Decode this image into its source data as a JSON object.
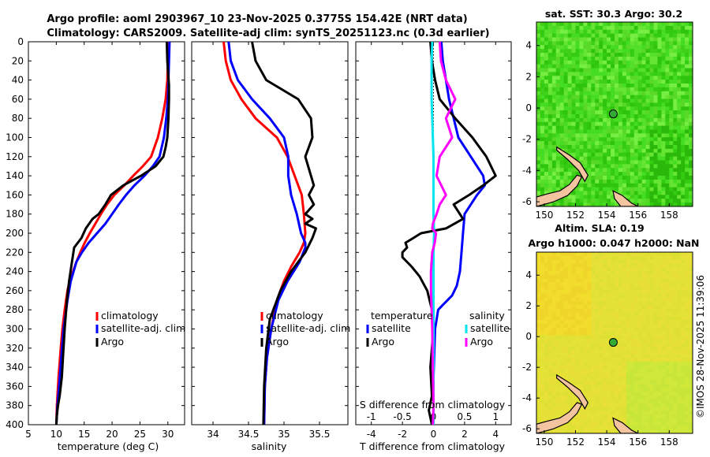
{
  "figure": {
    "title_line1": "Argo profile: aoml 2903967_10 23-Nov-2025 0.3775S 154.42E (NRT data)",
    "title_line2": "Climatology: CARS2009. Satellite-adj clim: synTS_20251123.nc (0.3d earlier)",
    "credit": "©IMOS 28-Nov-2025 11:39:06"
  },
  "colors": {
    "climatology": "#ff0000",
    "satellite": "#0000ff",
    "argo": "#000000",
    "temp_diff_satellite": "#0000ff",
    "sal_diff_satellite": "#00e5ee",
    "sal_diff_argo": "#ff00ff",
    "land": "#f4c4a0"
  },
  "chart_data": [
    {
      "type": "line",
      "name": "temperature-profile",
      "xlabel": "temperature (deg C)",
      "ylabel": "",
      "xlim": [
        5,
        33
      ],
      "ylim": [
        0,
        400
      ],
      "y_inverted": true,
      "xticks": [
        5,
        10,
        15,
        20,
        25,
        30
      ],
      "yticks": [
        0,
        20,
        40,
        60,
        80,
        100,
        120,
        140,
        160,
        180,
        200,
        220,
        240,
        260,
        280,
        300,
        320,
        340,
        360,
        380,
        400
      ],
      "legend": [
        "climatology",
        "satellite-adj. clim",
        "Argo"
      ],
      "series": [
        {
          "name": "climatology",
          "color": "#ff0000",
          "x": [
            30.1,
            30.0,
            29.9,
            29.6,
            29.0,
            28.2,
            27.0,
            25.5,
            23.8,
            22.2,
            20.4,
            19.1,
            18.0,
            17.0,
            16.0,
            15.1,
            14.3,
            13.6,
            13.0,
            12.4,
            12.0,
            11.5,
            11.1,
            10.8,
            10.4,
            10.1,
            10.0
          ],
          "y": [
            0,
            20,
            40,
            60,
            80,
            100,
            120,
            130,
            140,
            150,
            160,
            170,
            180,
            190,
            200,
            210,
            220,
            230,
            240,
            250,
            260,
            280,
            300,
            320,
            350,
            380,
            400
          ]
        },
        {
          "name": "satellite-adj. clim",
          "color": "#0000ff",
          "x": [
            30.3,
            30.2,
            30.1,
            30.0,
            29.7,
            29.3,
            28.5,
            27.3,
            25.8,
            24.0,
            22.5,
            21.2,
            20.0,
            18.8,
            17.3,
            15.8,
            14.6,
            13.6,
            12.6,
            12.0,
            11.3,
            10.9,
            10.5,
            10.2,
            10.0
          ],
          "y": [
            0,
            20,
            40,
            60,
            80,
            100,
            120,
            130,
            140,
            150,
            160,
            170,
            180,
            190,
            200,
            210,
            220,
            230,
            250,
            270,
            300,
            330,
            360,
            380,
            400
          ]
        },
        {
          "name": "Argo",
          "color": "#000000",
          "x": [
            29.8,
            29.9,
            30.2,
            30.2,
            30.1,
            29.9,
            29.6,
            29.2,
            27.8,
            25.2,
            22.0,
            19.8,
            18.8,
            17.6,
            16.5,
            15.3,
            14.5,
            13.2,
            12.8,
            12.3,
            11.9,
            11.5,
            11.2,
            11.0,
            10.6,
            10.3,
            10.1,
            10.0
          ],
          "y": [
            0,
            20,
            45,
            60,
            80,
            100,
            110,
            120,
            130,
            140,
            150,
            160,
            170,
            180,
            185,
            195,
            205,
            215,
            230,
            250,
            270,
            300,
            330,
            350,
            370,
            380,
            390,
            400
          ]
        }
      ]
    },
    {
      "type": "line",
      "name": "salinity-profile",
      "xlabel": "salinity",
      "ylabel": "",
      "xlim": [
        33.7,
        35.9
      ],
      "ylim": [
        0,
        400
      ],
      "y_inverted": true,
      "xticks": [
        34,
        34.5,
        35,
        35.5
      ],
      "legend": [
        "climatology",
        "satellite-adj. clim",
        "Argo"
      ],
      "series": [
        {
          "name": "climatology",
          "color": "#ff0000",
          "x": [
            34.15,
            34.18,
            34.25,
            34.4,
            34.6,
            34.9,
            35.05,
            35.15,
            35.25,
            35.28,
            35.3,
            35.28,
            35.22,
            35.1,
            35.0,
            34.9,
            34.82,
            34.76,
            34.73,
            34.72
          ],
          "y": [
            0,
            20,
            40,
            60,
            80,
            100,
            120,
            140,
            160,
            180,
            200,
            210,
            220,
            235,
            250,
            270,
            300,
            330,
            360,
            400
          ]
        },
        {
          "name": "satellite-adj. clim",
          "color": "#0000ff",
          "x": [
            34.22,
            34.25,
            34.35,
            34.55,
            34.8,
            35.0,
            35.06,
            35.06,
            35.1,
            35.18,
            35.24,
            35.3,
            35.3,
            35.22,
            35.05,
            34.92,
            34.82,
            34.76,
            34.73,
            34.72
          ],
          "y": [
            0,
            20,
            40,
            60,
            80,
            100,
            120,
            140,
            160,
            180,
            200,
            210,
            215,
            230,
            250,
            270,
            300,
            330,
            360,
            400
          ]
        },
        {
          "name": "Argo",
          "color": "#000000",
          "x": [
            34.55,
            34.6,
            34.75,
            35.2,
            35.38,
            35.4,
            35.3,
            35.38,
            35.42,
            35.35,
            35.42,
            35.3,
            35.4,
            35.3,
            35.45,
            35.4,
            35.3,
            35.1,
            34.95,
            34.8,
            34.75,
            34.72,
            34.71
          ],
          "y": [
            0,
            20,
            40,
            60,
            80,
            100,
            120,
            140,
            150,
            160,
            170,
            180,
            185,
            190,
            195,
            205,
            220,
            240,
            260,
            290,
            320,
            360,
            400
          ]
        }
      ]
    },
    {
      "type": "line",
      "name": "difference-from-climatology",
      "xlabel": "T difference from climatology",
      "xlabel_top": "S difference from climatology",
      "xlim": [
        -5,
        5
      ],
      "xlim_salinity": [
        -1.25,
        1.25
      ],
      "ylim": [
        0,
        400
      ],
      "y_inverted": true,
      "xticks": [
        -4,
        -2,
        0,
        2,
        4
      ],
      "xticks_salinity": [
        -1,
        -0.5,
        0,
        0.5,
        1
      ],
      "xticklabels_salinity": [
        "-1",
        "-0.5",
        "0",
        "0.5",
        "1"
      ],
      "legend_temperature_title": "temperature",
      "legend_salinity_title": "salinity",
      "legend_temperature": [
        "satellite",
        "Argo"
      ],
      "legend_salinity": [
        "satellite",
        "Argo"
      ],
      "series": [
        {
          "name": "temperature satellite",
          "color": "#0000ff",
          "x": [
            0.5,
            0.6,
            0.8,
            1.0,
            1.3,
            1.6,
            2.4,
            3.2,
            3.3,
            2.8,
            2.0,
            1.9,
            1.8,
            1.7,
            1.5,
            1.2,
            0.9,
            0.6,
            0.3,
            0.1,
            0.0,
            0.0
          ],
          "y": [
            0,
            20,
            40,
            60,
            80,
            100,
            120,
            140,
            150,
            160,
            180,
            200,
            220,
            240,
            255,
            265,
            270,
            275,
            280,
            300,
            350,
            400
          ]
        },
        {
          "name": "temperature Argo",
          "color": "#000000",
          "x": [
            -0.2,
            -0.1,
            0.1,
            0.4,
            1.4,
            2.5,
            3.4,
            4.0,
            3.2,
            2.3,
            1.3,
            1.9,
            0.8,
            -0.8,
            -1.3,
            -1.8,
            -1.7,
            -2.0,
            -2.0,
            -1.4,
            -0.9,
            -0.4,
            -0.1,
            0.0,
            -0.2,
            -0.1,
            -0.3,
            -0.1
          ],
          "y": [
            0,
            20,
            40,
            60,
            80,
            100,
            120,
            140,
            150,
            160,
            170,
            185,
            195,
            200,
            205,
            210,
            215,
            220,
            225,
            235,
            245,
            260,
            280,
            300,
            340,
            370,
            385,
            400
          ]
        },
        {
          "name": "salinity satellite",
          "color": "#00e5ee",
          "x": [
            -0.02,
            -0.03,
            -0.03,
            -0.03,
            -0.02,
            -0.01,
            0.0,
            0.0,
            0.0,
            0.0,
            0.01,
            0.0,
            0.0,
            0.0,
            0.0,
            0.0
          ],
          "y": [
            0,
            20,
            40,
            60,
            80,
            100,
            120,
            140,
            160,
            180,
            200,
            220,
            250,
            300,
            350,
            400
          ]
        },
        {
          "name": "salinity Argo",
          "color": "#ff00ff",
          "x": [
            0.1,
            0.12,
            0.2,
            0.35,
            0.2,
            0.3,
            0.1,
            0.05,
            0.2,
            0.1,
            0.05,
            -0.01,
            -0.02,
            0.04,
            0.02,
            -0.02,
            -0.04,
            -0.04,
            -0.03,
            -0.02,
            -0.01,
            0.0,
            -0.01
          ],
          "y": [
            0,
            20,
            40,
            60,
            80,
            100,
            120,
            140,
            160,
            170,
            180,
            190,
            195,
            200,
            210,
            220,
            240,
            260,
            280,
            300,
            340,
            380,
            400
          ]
        }
      ]
    },
    {
      "type": "heatmap",
      "name": "satellite-sst-map",
      "title": "sat. SST: 30.3 Argo: 30.2",
      "xlim": [
        149.5,
        159.5
      ],
      "ylim": [
        -6.3,
        5.5
      ],
      "xticks": [
        150,
        152,
        154,
        156,
        158
      ],
      "yticks": [
        4,
        2,
        0,
        -2,
        -4,
        -6
      ],
      "float_position": {
        "lon": 154.42,
        "lat": -0.3775
      }
    },
    {
      "type": "heatmap",
      "name": "altimeter-sla-map",
      "title": "Altim. SLA: 0.19",
      "subtitle": "Argo h1000: 0.047 h2000: NaN",
      "xlim": [
        149.5,
        159.5
      ],
      "ylim": [
        -6.3,
        5.5
      ],
      "xticks": [
        150,
        152,
        154,
        156,
        158
      ],
      "yticks": [
        4,
        2,
        0,
        -2,
        -4,
        -6
      ],
      "float_position": {
        "lon": 154.42,
        "lat": -0.3775
      }
    }
  ]
}
